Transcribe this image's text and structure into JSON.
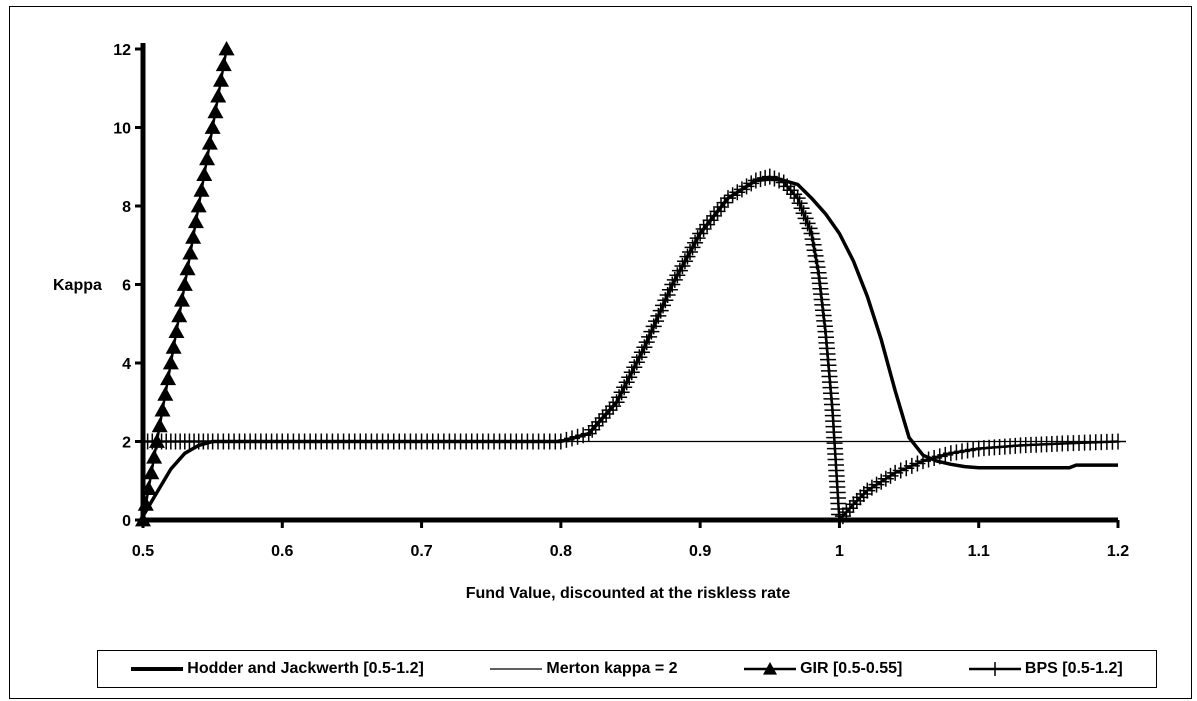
{
  "chart_data": {
    "type": "line",
    "xlabel": "Fund Value, discounted at the riskless rate",
    "ylabel": "Kappa",
    "xlim": [
      0.5,
      1.2
    ],
    "ylim": [
      0,
      12
    ],
    "x_ticks": [
      "0.5",
      "0.6",
      "0.7",
      "0.8",
      "0.9",
      "1",
      "1.1",
      "1.2"
    ],
    "y_ticks": [
      "0",
      "2",
      "4",
      "6",
      "8",
      "10",
      "12"
    ],
    "grid": false,
    "legend_position": "bottom",
    "series": [
      {
        "name": "Hodder and Jackwerth [0.5-1.2]",
        "style": "thick",
        "color": "#000000",
        "x": [
          0.5,
          0.51,
          0.52,
          0.53,
          0.54,
          0.55,
          0.6,
          0.7,
          0.8,
          0.82,
          0.84,
          0.86,
          0.88,
          0.9,
          0.92,
          0.94,
          0.955,
          0.97,
          0.98,
          0.99,
          1.0,
          1.01,
          1.02,
          1.03,
          1.04,
          1.05,
          1.06,
          1.07,
          1.08,
          1.09,
          1.1,
          1.12,
          1.15,
          1.165,
          1.17,
          1.2
        ],
        "y": [
          0.1,
          0.7,
          1.3,
          1.7,
          1.9,
          2.0,
          2.0,
          2.0,
          2.0,
          2.2,
          3.0,
          4.4,
          6.0,
          7.3,
          8.2,
          8.65,
          8.7,
          8.55,
          8.2,
          7.8,
          7.3,
          6.6,
          5.7,
          4.6,
          3.3,
          2.1,
          1.65,
          1.5,
          1.42,
          1.36,
          1.33,
          1.33,
          1.33,
          1.33,
          1.4,
          1.4
        ]
      },
      {
        "name": "Merton kappa = 2",
        "style": "thin",
        "color": "#000000",
        "x": [
          0.5,
          1.2
        ],
        "y": [
          2,
          2
        ]
      },
      {
        "name": "GIR [0.5-0.55]",
        "style": "triangle",
        "color": "#000000",
        "x": [
          0.5,
          0.502,
          0.504,
          0.506,
          0.508,
          0.51,
          0.512,
          0.514,
          0.516,
          0.518,
          0.52,
          0.522,
          0.524,
          0.526,
          0.528,
          0.53,
          0.532,
          0.534,
          0.536,
          0.538,
          0.54,
          0.542,
          0.544,
          0.546,
          0.548,
          0.55,
          0.552,
          0.554,
          0.556,
          0.558,
          0.56
        ],
        "y": [
          0.0,
          0.4,
          0.8,
          1.2,
          1.6,
          2.0,
          2.4,
          2.8,
          3.2,
          3.6,
          4.0,
          4.4,
          4.8,
          5.2,
          5.6,
          6.0,
          6.4,
          6.8,
          7.2,
          7.6,
          8.0,
          8.4,
          8.8,
          9.2,
          9.6,
          10.0,
          10.4,
          10.8,
          11.2,
          11.6,
          12.0
        ]
      },
      {
        "name": "BPS [0.5-1.2]",
        "style": "plus",
        "color": "#000000",
        "x": [
          0.5,
          0.51,
          0.52,
          0.53,
          0.54,
          0.55,
          0.6,
          0.7,
          0.8,
          0.82,
          0.84,
          0.86,
          0.88,
          0.9,
          0.92,
          0.94,
          0.95,
          0.96,
          0.97,
          0.98,
          0.985,
          0.99,
          0.995,
          1.0,
          1.01,
          1.02,
          1.04,
          1.06,
          1.08,
          1.1,
          1.13,
          1.16,
          1.2
        ],
        "y": [
          2.0,
          2.0,
          2.0,
          2.0,
          2.0,
          2.0,
          2.0,
          2.0,
          2.0,
          2.2,
          3.0,
          4.4,
          6.0,
          7.3,
          8.2,
          8.65,
          8.75,
          8.6,
          8.2,
          7.3,
          6.3,
          4.8,
          2.8,
          0.0,
          0.4,
          0.75,
          1.2,
          1.5,
          1.7,
          1.82,
          1.9,
          1.95,
          2.0
        ]
      }
    ]
  }
}
